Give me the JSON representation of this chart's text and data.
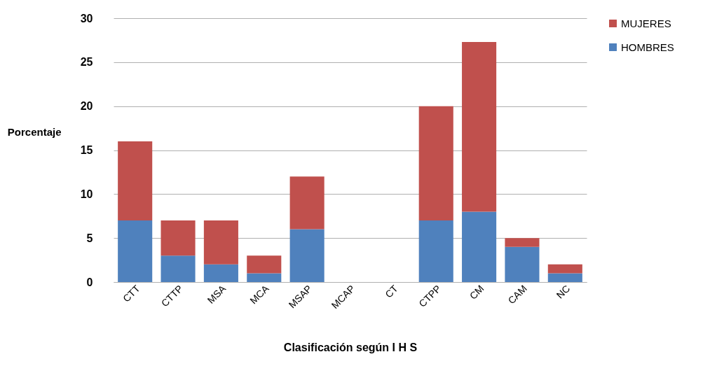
{
  "chart_data": {
    "type": "bar",
    "stacked": true,
    "xlabel": "Clasificación según  I H S",
    "ylabel": "Porcentaje",
    "categories": [
      "CTT",
      "CTTP",
      "MSA",
      "MCA",
      "MSAP",
      "MCAP",
      "CT",
      "CTPP",
      "CM",
      "CAM",
      "NC"
    ],
    "series": [
      {
        "name": "HOMBRES",
        "color": "#4f81bd",
        "values": [
          7,
          3,
          2,
          1,
          6,
          0,
          0,
          7,
          8,
          4,
          1
        ]
      },
      {
        "name": "MUJERES",
        "color": "#c0504d",
        "values": [
          9,
          4,
          5,
          2,
          6,
          0,
          0,
          13,
          19.3,
          1,
          1
        ]
      }
    ],
    "ylim": [
      0,
      30
    ],
    "yticks": [
      0,
      5,
      10,
      15,
      20,
      25,
      30
    ],
    "grid": "y",
    "legend": "right"
  }
}
